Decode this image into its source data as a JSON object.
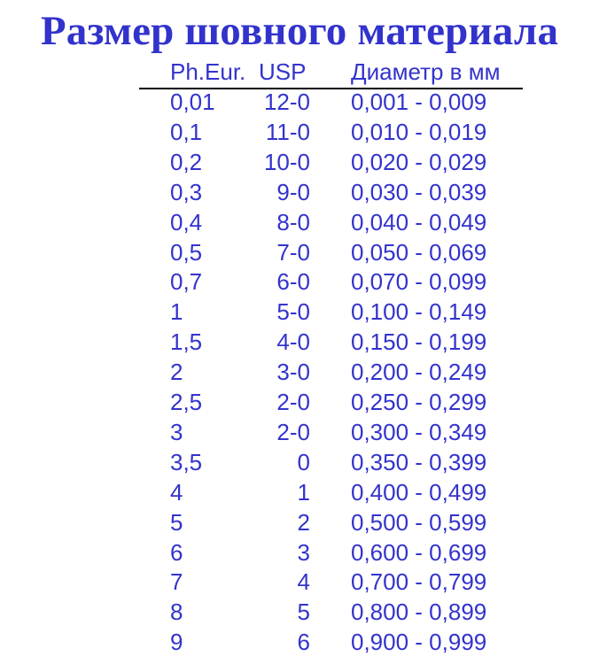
{
  "title": "Размер шовного материала",
  "colors": {
    "text": "#3333cc",
    "rule": "#000000"
  },
  "table": {
    "headers": [
      "Ph.Eur.",
      "USP",
      "Диаметр в мм"
    ],
    "rows": [
      [
        "0,01",
        "12-0",
        "0,001 - 0,009"
      ],
      [
        "0,1",
        "11-0",
        "0,010 - 0,019"
      ],
      [
        "0,2",
        "10-0",
        "0,020 - 0,029"
      ],
      [
        "0,3",
        "9-0",
        "0,030 - 0,039"
      ],
      [
        "0,4",
        "8-0",
        "0,040 - 0,049"
      ],
      [
        "0,5",
        "7-0",
        "0,050 - 0,069"
      ],
      [
        "0,7",
        "6-0",
        "0,070 - 0,099"
      ],
      [
        "1",
        "5-0",
        "0,100 - 0,149"
      ],
      [
        "1,5",
        "4-0",
        "0,150 - 0,199"
      ],
      [
        "2",
        "3-0",
        "0,200 - 0,249"
      ],
      [
        "2,5",
        "2-0",
        "0,250 - 0,299"
      ],
      [
        "3",
        "2-0",
        "0,300 - 0,349"
      ],
      [
        "3,5",
        "0",
        "0,350 - 0,399"
      ],
      [
        "4",
        "1",
        "0,400 - 0,499"
      ],
      [
        "5",
        "2",
        "0,500 - 0,599"
      ],
      [
        "6",
        "3",
        "0,600 - 0,699"
      ],
      [
        "7",
        "4",
        "0,700 - 0,799"
      ],
      [
        "8",
        "5",
        "0,800 - 0,899"
      ],
      [
        "9",
        "6",
        "0,900 - 0,999"
      ]
    ]
  }
}
